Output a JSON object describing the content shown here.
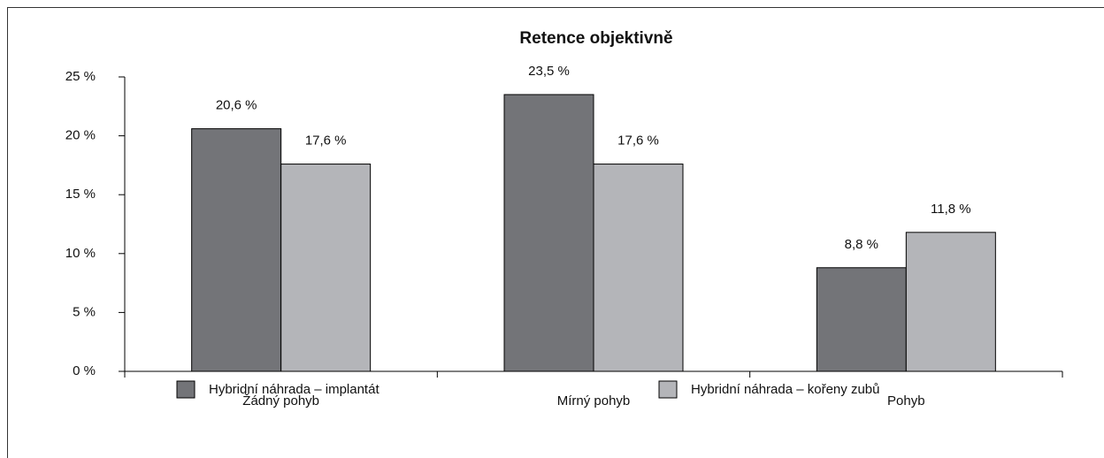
{
  "chart_data": {
    "type": "bar",
    "title": "Retence objektivně",
    "categories": [
      "Žádný pohyb",
      "Mírný pohyb",
      "Pohyb"
    ],
    "series": [
      {
        "name": "Hybridní náhrada – implantát",
        "color": "#737478",
        "values": [
          20.6,
          23.5,
          8.8
        ],
        "value_labels": [
          "20,6 %",
          "23,5 %",
          "8,8 %"
        ]
      },
      {
        "name": "Hybridní náhrada – kořeny zubů",
        "color": "#b4b5b9",
        "values": [
          17.6,
          17.6,
          11.8
        ],
        "value_labels": [
          "17,6 %",
          "17,6 %",
          "11,8 %"
        ]
      }
    ],
    "ylim": [
      0,
      25
    ],
    "yticks": [
      {
        "value": 0,
        "label": "0 %"
      },
      {
        "value": 5,
        "label": "5 %"
      },
      {
        "value": 10,
        "label": "10 %"
      },
      {
        "value": 15,
        "label": "15 %"
      },
      {
        "value": 20,
        "label": "20 %"
      },
      {
        "value": 25,
        "label": "25 %"
      }
    ],
    "grid": false,
    "legend": "bottom"
  }
}
